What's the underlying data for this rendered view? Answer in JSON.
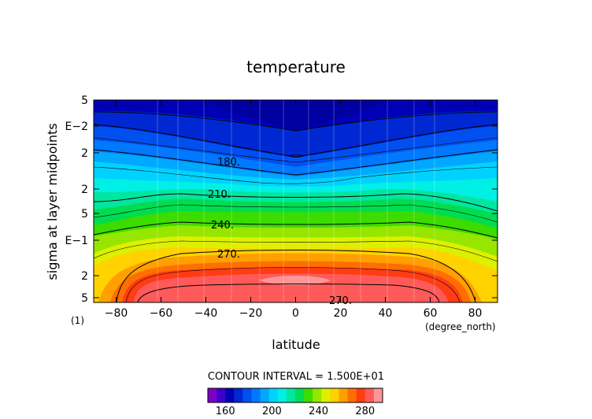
{
  "chart_data": {
    "type": "contour",
    "title": "temperature",
    "xlabel": "latitude",
    "ylabel": "sigma at layer midpoints",
    "x_units": "(degree_north)",
    "page_marker": "(1)",
    "xlim": [
      -90,
      90
    ],
    "x_ticks": [
      -80,
      -60,
      -40,
      -20,
      0,
      20,
      40,
      60,
      80
    ],
    "y_scale": "log",
    "y_tick_labels": [
      "5",
      "E−2",
      "2",
      "2",
      "5",
      "E−1",
      "2",
      "5"
    ],
    "contour_interval_text": "CONTOUR INTERVAL = 1.500E+01",
    "contour_labels": [
      "180.",
      "210.",
      "240.",
      "270.",
      "270."
    ],
    "colorbar": {
      "ticks": [
        160,
        200,
        240,
        280
      ],
      "colors": [
        "#7d00c8",
        "#3c00c8",
        "#0000b4",
        "#0028d2",
        "#0050f0",
        "#0078ff",
        "#00a8ff",
        "#00d2ff",
        "#00f0e6",
        "#00e6a0",
        "#00dc50",
        "#3cdc00",
        "#96e600",
        "#dcf000",
        "#ffd200",
        "#ffa000",
        "#ff6e00",
        "#ff3c14",
        "#ff5a5a",
        "#ff9696"
      ]
    }
  }
}
